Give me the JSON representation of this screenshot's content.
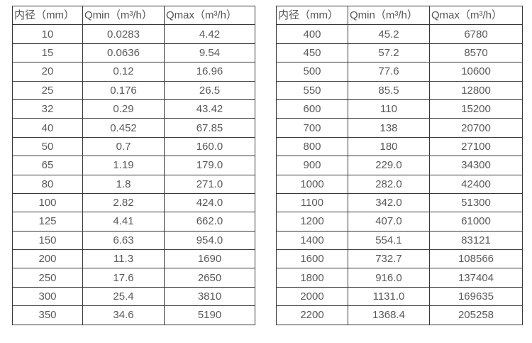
{
  "colors": {
    "background": "#ffffff",
    "border": "#383838",
    "text": "#595959"
  },
  "table_left": {
    "headers": [
      "内径（mm）",
      "Qmin（m³/h）",
      "Qmax（m³/h）"
    ],
    "rows": [
      [
        "10",
        "0.0283",
        "4.42"
      ],
      [
        "15",
        "0.0636",
        "9.54"
      ],
      [
        "20",
        "0.12",
        "16.96"
      ],
      [
        "25",
        "0.176",
        "26.5"
      ],
      [
        "32",
        "0.29",
        "43.42"
      ],
      [
        "40",
        "0.452",
        "67.85"
      ],
      [
        "50",
        "0.7",
        "160.0"
      ],
      [
        "65",
        "1.19",
        "179.0"
      ],
      [
        "80",
        "1.8",
        "271.0"
      ],
      [
        "100",
        "2.82",
        "424.0"
      ],
      [
        "125",
        "4.41",
        "662.0"
      ],
      [
        "150",
        "6.63",
        "954.0"
      ],
      [
        "200",
        "11.3",
        "1690"
      ],
      [
        "250",
        "17.6",
        "2650"
      ],
      [
        "300",
        "25.4",
        "3810"
      ],
      [
        "350",
        "34.6",
        "5190"
      ]
    ]
  },
  "table_right": {
    "headers": [
      "内径（mm）",
      "Qmin（m³/h）",
      "Qmax（m³/h）"
    ],
    "rows": [
      [
        "400",
        "45.2",
        "6780"
      ],
      [
        "450",
        "57.2",
        "8570"
      ],
      [
        "500",
        "77.6",
        "10600"
      ],
      [
        "550",
        "85.5",
        "12800"
      ],
      [
        "600",
        "110",
        "15200"
      ],
      [
        "700",
        "138",
        "20700"
      ],
      [
        "800",
        "180",
        "27100"
      ],
      [
        "900",
        "229.0",
        "34300"
      ],
      [
        "1000",
        "282.0",
        "42400"
      ],
      [
        "1100",
        "342.0",
        "51300"
      ],
      [
        "1200",
        "407.0",
        "61000"
      ],
      [
        "1400",
        "554.1",
        "83121"
      ],
      [
        "1600",
        "732.7",
        "108566"
      ],
      [
        "1800",
        "916.0",
        "137404"
      ],
      [
        "2000",
        "1131.0",
        "169635"
      ],
      [
        "2200",
        "1368.4",
        "205258"
      ]
    ]
  }
}
